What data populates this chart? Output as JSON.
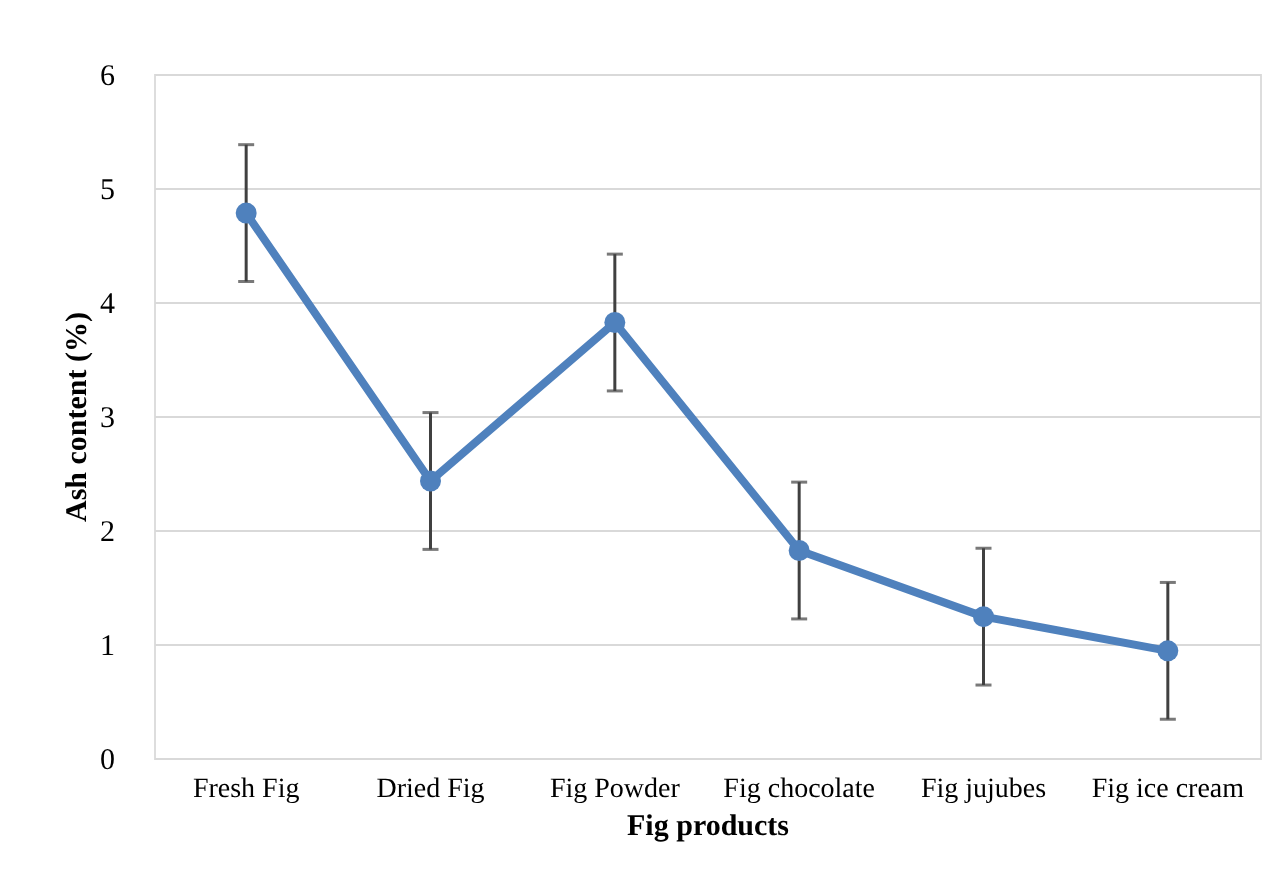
{
  "chart_data": {
    "type": "line",
    "xlabel": "Fig  products",
    "ylabel": "Ash content (%)",
    "categories": [
      "Fresh Fig",
      "Dried Fig",
      "Fig Powder",
      "Fig chocolate",
      "Fig jujubes",
      "Fig ice cream"
    ],
    "series": [
      {
        "color": "#4f81bd",
        "values": [
          4.78,
          2.43,
          3.82,
          1.82,
          1.24,
          0.94
        ],
        "errors": [
          0.6,
          0.6,
          0.6,
          0.6,
          0.6,
          0.6
        ]
      }
    ],
    "ylim": [
      0,
      6
    ],
    "yticks": [
      0,
      1,
      2,
      3,
      4,
      5,
      6
    ],
    "grid": "y",
    "marker": "circle",
    "line_style": "solid"
  }
}
